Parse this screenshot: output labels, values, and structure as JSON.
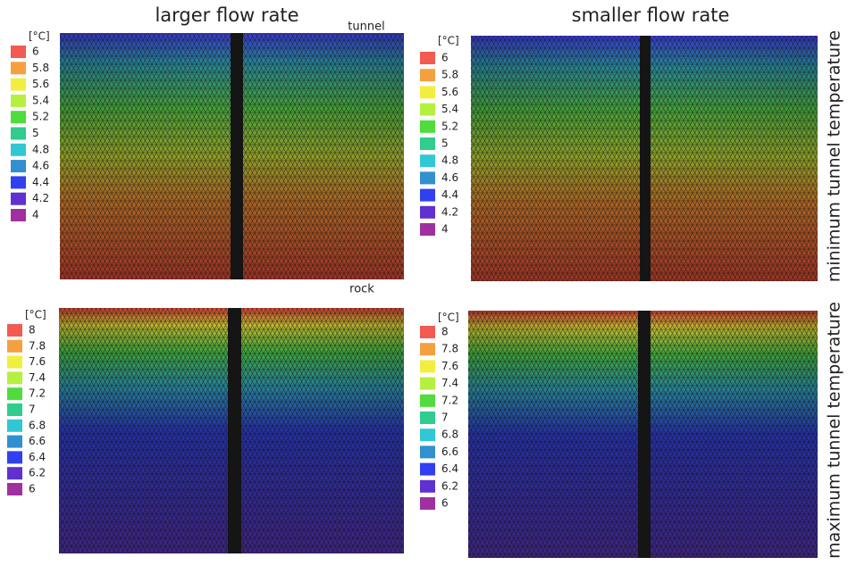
{
  "columns": [
    "larger flow rate",
    "smaller flow rate"
  ],
  "rows": [
    "minimum tunnel temperature",
    "maximum tunnel temperature"
  ],
  "annotations": {
    "tunnel": "tunnel",
    "rock": "rock"
  },
  "legend_colors": [
    "#f25a52",
    "#f5a040",
    "#f2ee40",
    "#b5f040",
    "#4fdc3c",
    "#30cc90",
    "#30c8d4",
    "#3090d0",
    "#3040f0",
    "#6030d0",
    "#a030a0"
  ],
  "panels": [
    {
      "unit": "[°C]",
      "labels": [
        "6",
        "5.8",
        "5.6",
        "5.4",
        "5.2",
        "5",
        "4.8",
        "4.6",
        "4.4",
        "4.2",
        "4"
      ]
    },
    {
      "unit": "[°C]",
      "labels": [
        "6",
        "5.8",
        "5.6",
        "5.4",
        "5.2",
        "5",
        "4.8",
        "4.6",
        "4.4",
        "4.2",
        "4"
      ]
    },
    {
      "unit": "[°C]",
      "labels": [
        "8",
        "7.8",
        "7.6",
        "7.4",
        "7.2",
        "7",
        "6.8",
        "6.6",
        "6.4",
        "6.2",
        "6"
      ]
    },
    {
      "unit": "[°C]",
      "labels": [
        "8",
        "7.8",
        "7.6",
        "7.4",
        "7.2",
        "7",
        "6.8",
        "6.6",
        "6.4",
        "6.2",
        "6"
      ]
    }
  ]
}
